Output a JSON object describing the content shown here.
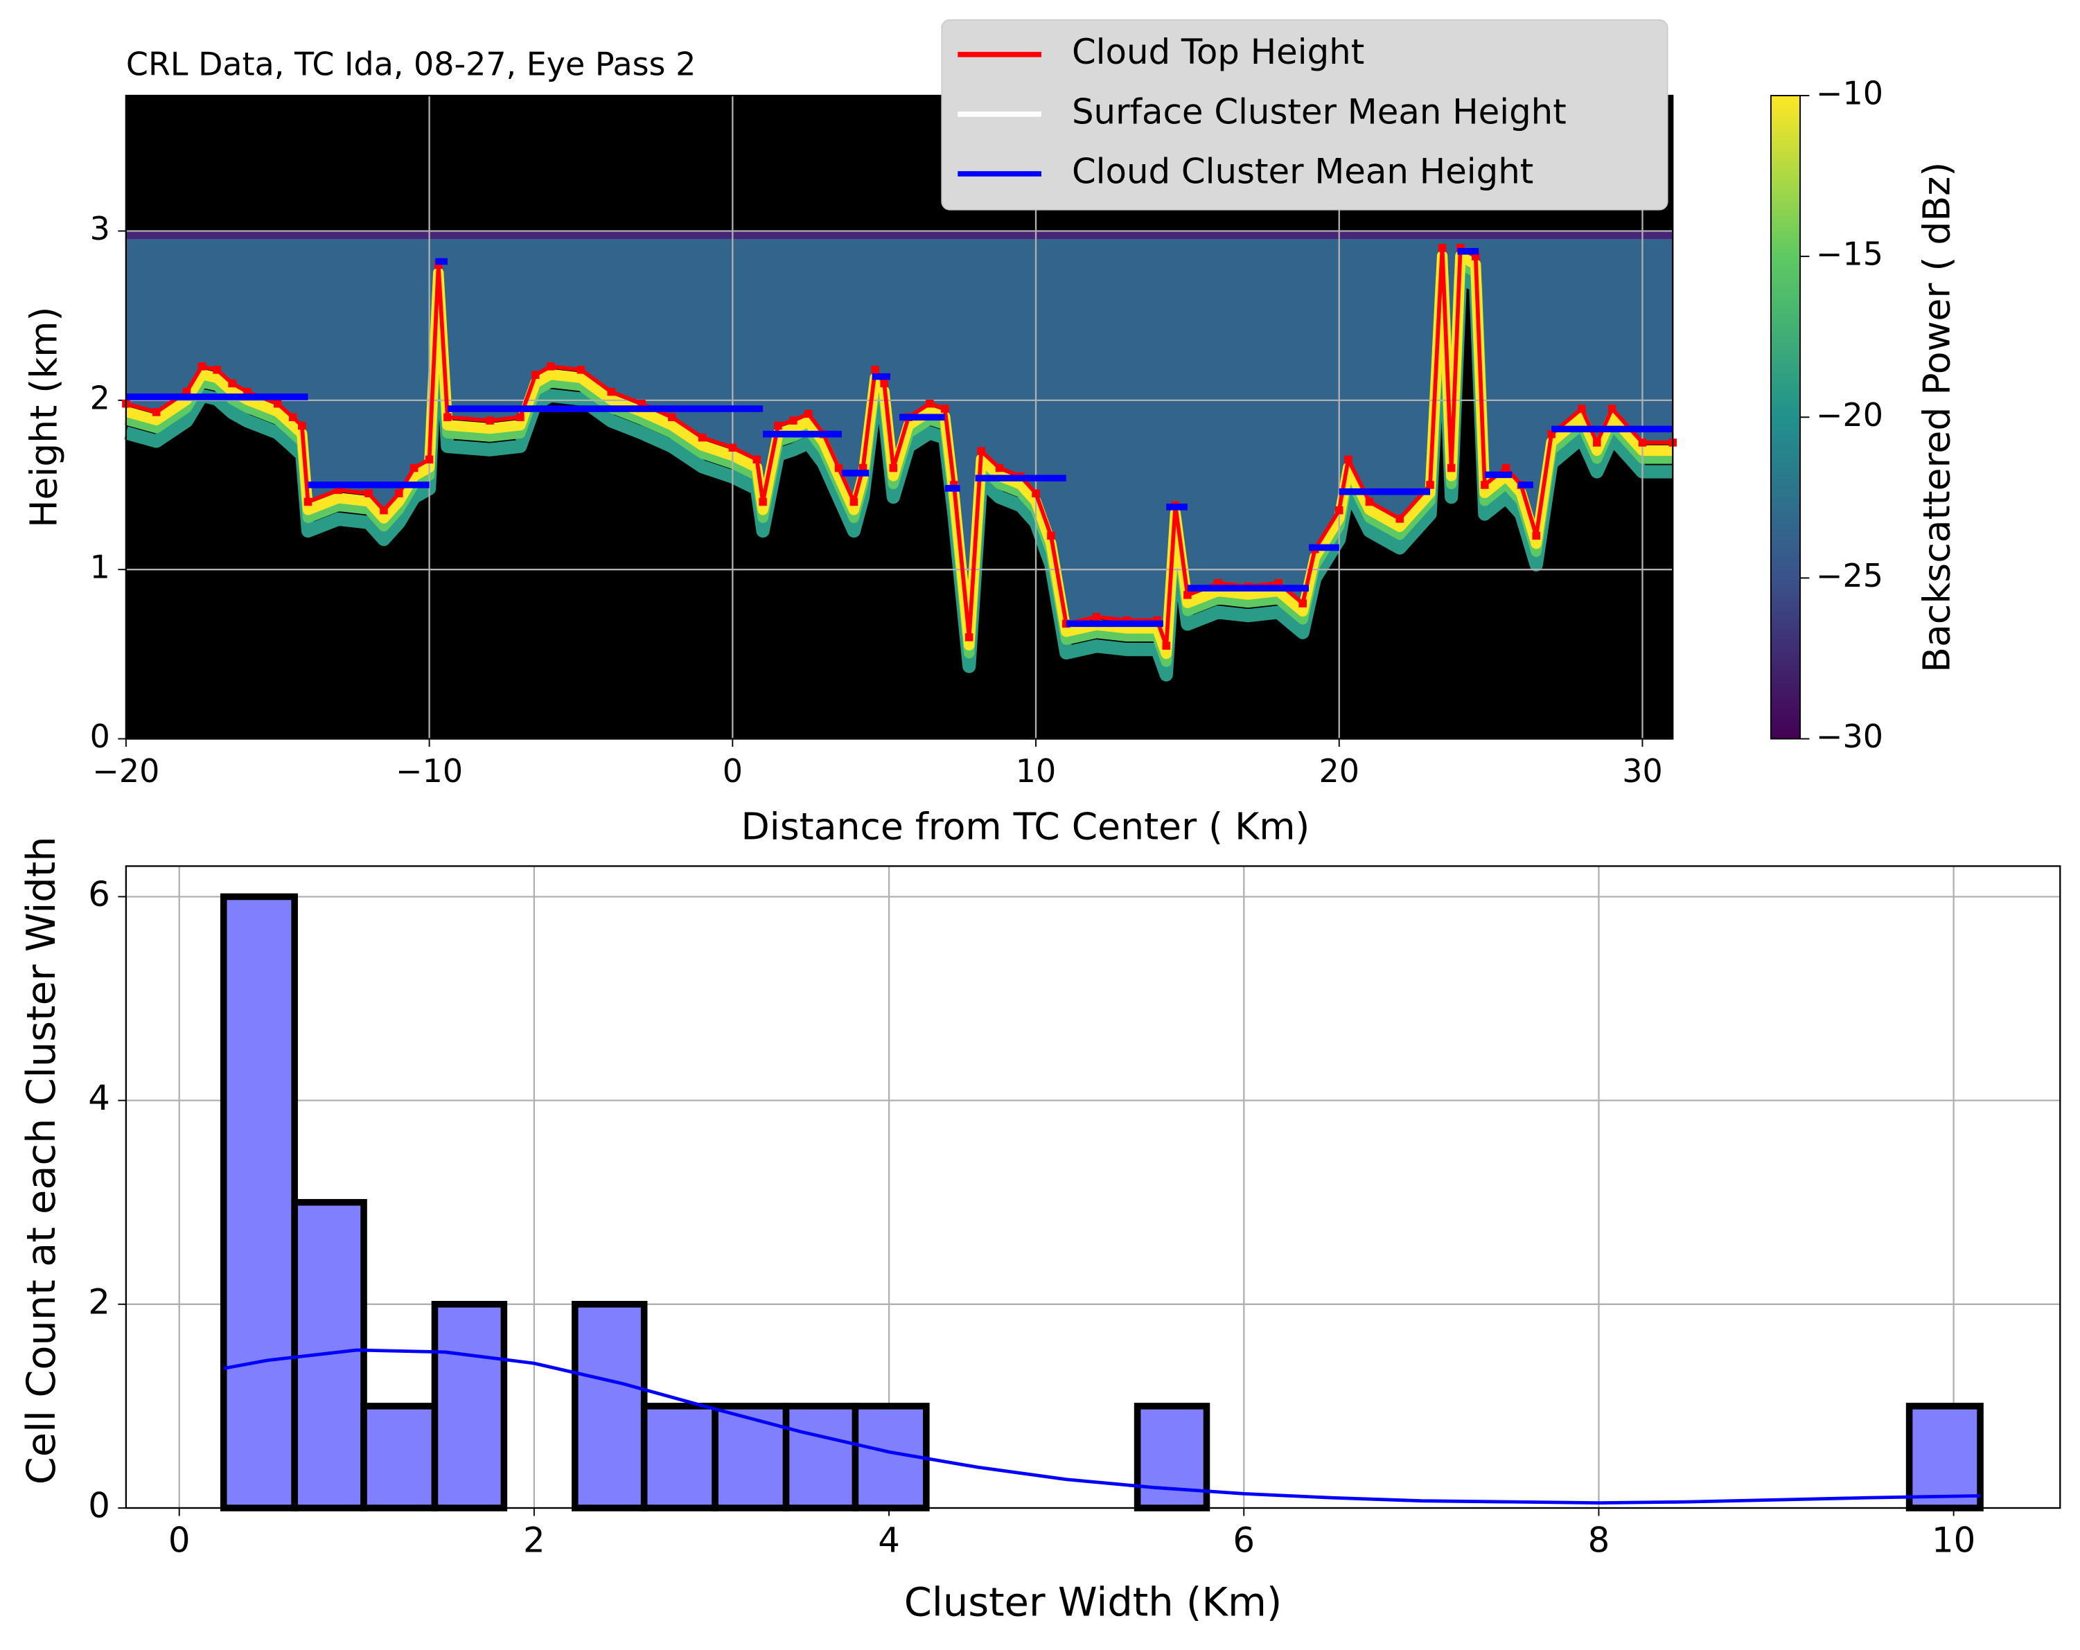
{
  "chart_data": [
    {
      "type": "heatmap",
      "title": "CRL Data, TC Ida, 08-27, Eye Pass 2",
      "x_label": "Distance from TC Center ( Km)",
      "y_label": "Height (km)",
      "xlim": [
        -20,
        31
      ],
      "ylim": [
        0,
        3.8
      ],
      "xticks": [
        {
          "value": -20,
          "label": "−20"
        },
        {
          "value": -10,
          "label": "−10"
        },
        0,
        10,
        20,
        30
      ],
      "yticks": [
        0,
        1,
        2,
        3
      ],
      "grid": true,
      "legend": "upper right",
      "colorbar": {
        "label": "Backscattered Power ( dBz)",
        "lim": [
          -30,
          -10
        ],
        "ticks": [
          {
            "value": -30,
            "label": "−30"
          },
          {
            "value": -25,
            "label": "−25"
          },
          {
            "value": -20,
            "label": "−20"
          },
          {
            "value": -15,
            "label": "−15"
          },
          {
            "value": -10,
            "label": "−10"
          }
        ]
      },
      "series": [
        {
          "name": "Cloud Top Height",
          "color": "#ff0000",
          "x": [
            -20,
            -19,
            -18,
            -17.5,
            -17,
            -16.5,
            -16,
            -15,
            -14.5,
            -14.2,
            -14,
            -13,
            -12,
            -11.5,
            -11,
            -10.5,
            -10,
            -9.7,
            -9.4,
            -8,
            -7,
            -6.5,
            -6,
            -5,
            -4,
            -3,
            -2,
            -1,
            0,
            0.8,
            1,
            1.5,
            2,
            2.5,
            3,
            3.5,
            4,
            4.3,
            4.7,
            5,
            5.3,
            5.8,
            6.5,
            7,
            7.3,
            7.8,
            8.2,
            8.8,
            9.5,
            10,
            10.5,
            11,
            12,
            13,
            14,
            14.3,
            14.6,
            15,
            16,
            17,
            18,
            18.8,
            19.2,
            20,
            20.3,
            21,
            22,
            23,
            23.4,
            23.7,
            24,
            24.5,
            24.8,
            25.5,
            26,
            26.5,
            27,
            28,
            28.5,
            29,
            30,
            31
          ],
          "values": [
            1.98,
            1.93,
            2.05,
            2.2,
            2.18,
            2.1,
            2.05,
            1.98,
            1.9,
            1.85,
            1.4,
            1.47,
            1.45,
            1.35,
            1.45,
            1.6,
            1.65,
            2.8,
            1.9,
            1.88,
            1.9,
            2.15,
            2.2,
            2.18,
            2.05,
            1.98,
            1.9,
            1.78,
            1.72,
            1.65,
            1.4,
            1.85,
            1.88,
            1.92,
            1.8,
            1.6,
            1.4,
            1.6,
            2.18,
            2.1,
            1.6,
            1.9,
            1.98,
            1.95,
            1.5,
            0.6,
            1.7,
            1.6,
            1.55,
            1.45,
            1.2,
            0.68,
            0.72,
            0.7,
            0.7,
            0.55,
            1.38,
            0.85,
            0.92,
            0.9,
            0.92,
            0.8,
            1.12,
            1.35,
            1.65,
            1.4,
            1.3,
            1.5,
            2.9,
            1.6,
            2.9,
            2.85,
            1.5,
            1.6,
            1.5,
            1.2,
            1.8,
            1.95,
            1.75,
            1.95,
            1.75,
            1.75
          ]
        },
        {
          "name": "Surface Cluster Mean Height",
          "color": "#ffffff",
          "x": [],
          "values": []
        },
        {
          "name": "Cloud Cluster Mean Height",
          "color": "#0000ff",
          "x": [
            -20,
            -14,
            null,
            -14,
            -10,
            null,
            -9.8,
            -9.4,
            null,
            -9.4,
            1,
            null,
            1,
            3.6,
            null,
            3.6,
            4.5,
            null,
            4.6,
            5.2,
            null,
            5.5,
            7,
            null,
            7,
            7.5,
            null,
            8,
            11,
            null,
            11,
            14.2,
            null,
            14.3,
            15,
            null,
            15,
            19,
            null,
            19,
            20,
            null,
            20,
            23,
            null,
            23.9,
            24.6,
            null,
            24.8,
            25.7,
            null,
            25.9,
            26.4,
            null,
            27,
            31
          ],
          "values": [
            2.02,
            2.02,
            null,
            1.5,
            1.5,
            null,
            2.82,
            2.82,
            null,
            1.95,
            1.95,
            null,
            1.8,
            1.8,
            null,
            1.57,
            1.57,
            null,
            2.14,
            2.14,
            null,
            1.9,
            1.9,
            null,
            1.48,
            1.48,
            null,
            1.54,
            1.54,
            null,
            0.68,
            0.68,
            null,
            1.37,
            1.37,
            null,
            0.89,
            0.89,
            null,
            1.13,
            1.13,
            null,
            1.46,
            1.46,
            null,
            2.88,
            2.88,
            null,
            1.56,
            1.56,
            null,
            1.5,
            1.5,
            null,
            1.83,
            1.83
          ]
        }
      ]
    },
    {
      "type": "histogram",
      "x_label": "Cluster Width (Km)",
      "y_label": "Cell Count at each Cluster Width",
      "xlim": [
        -0.3,
        10.6
      ],
      "ylim": [
        0,
        6.3
      ],
      "xticks": [
        0,
        2,
        4,
        6,
        8,
        10
      ],
      "yticks": [
        0,
        2,
        4,
        6
      ],
      "grid": true,
      "color": "#8080ff",
      "bins": [
        0.25,
        0.65,
        1.04,
        1.44,
        1.83,
        2.23,
        2.62,
        3.02,
        3.42,
        3.81,
        4.21,
        4.6,
        5.0,
        5.4,
        5.79,
        6.19,
        6.58,
        6.98,
        7.38,
        7.77,
        8.17,
        8.56,
        8.96,
        9.36,
        9.75,
        10.15
      ],
      "values": [
        6,
        3,
        1,
        2,
        0,
        2,
        1,
        1,
        1,
        1,
        0,
        0,
        0,
        1,
        0,
        0,
        0,
        0,
        0,
        0,
        0,
        0,
        0,
        0,
        1
      ],
      "kde": {
        "color": "#0000ff",
        "x": [
          0.25,
          0.5,
          1,
          1.5,
          2,
          2.5,
          3,
          3.5,
          4,
          4.5,
          5,
          5.5,
          6,
          6.5,
          7,
          7.5,
          8,
          8.5,
          9,
          9.5,
          10.15
        ],
        "values": [
          1.37,
          1.45,
          1.55,
          1.53,
          1.42,
          1.22,
          0.98,
          0.75,
          0.55,
          0.4,
          0.28,
          0.2,
          0.14,
          0.1,
          0.07,
          0.06,
          0.05,
          0.06,
          0.08,
          0.1,
          0.12
        ]
      }
    }
  ]
}
